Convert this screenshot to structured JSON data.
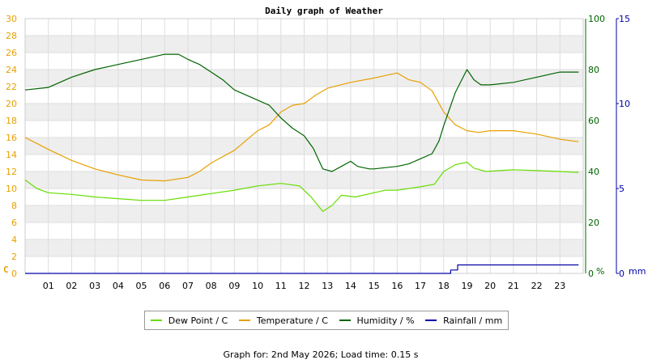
{
  "footer": "Graph for: 2nd May 2026; Load time: 0.15 s",
  "chart_data": {
    "type": "line",
    "title": "Daily graph of Weather",
    "grid": true,
    "legend_position": "bottom",
    "x": {
      "label": "",
      "range": [
        0,
        24
      ],
      "ticks": [
        "01",
        "02",
        "03",
        "04",
        "05",
        "06",
        "07",
        "08",
        "09",
        "10",
        "11",
        "12",
        "13",
        "14",
        "15",
        "16",
        "17",
        "18",
        "19",
        "20",
        "21",
        "22",
        "23"
      ]
    },
    "axes": {
      "left": {
        "unit": "C",
        "range": [
          0,
          30
        ],
        "ticks": [
          0,
          2,
          4,
          6,
          8,
          10,
          12,
          14,
          16,
          18,
          20,
          22,
          24,
          26,
          28,
          30
        ],
        "color": "#e8a000"
      },
      "right1": {
        "unit": "%",
        "range": [
          0,
          100
        ],
        "ticks": [
          0,
          20,
          40,
          60,
          80,
          100
        ],
        "color": "#006400"
      },
      "right2": {
        "unit": "mm",
        "range": [
          0,
          15
        ],
        "ticks": [
          0,
          5,
          10,
          15
        ],
        "color": "#0000aa"
      }
    },
    "series": [
      {
        "name": "Dew Point / C",
        "axis": "left",
        "color": "#66dd00",
        "points": [
          [
            0,
            11.0
          ],
          [
            0.5,
            10.0
          ],
          [
            1,
            9.5
          ],
          [
            2,
            9.3
          ],
          [
            3,
            9.0
          ],
          [
            4,
            8.8
          ],
          [
            5,
            8.6
          ],
          [
            6,
            8.6
          ],
          [
            7,
            9.0
          ],
          [
            8,
            9.4
          ],
          [
            9,
            9.8
          ],
          [
            10,
            10.3
          ],
          [
            11,
            10.6
          ],
          [
            11.8,
            10.3
          ],
          [
            12.3,
            9.0
          ],
          [
            12.8,
            7.3
          ],
          [
            13.2,
            8.0
          ],
          [
            13.6,
            9.2
          ],
          [
            14.2,
            9.0
          ],
          [
            15,
            9.5
          ],
          [
            15.5,
            9.8
          ],
          [
            16,
            9.8
          ],
          [
            17,
            10.2
          ],
          [
            17.6,
            10.5
          ],
          [
            18,
            12.0
          ],
          [
            18.5,
            12.8
          ],
          [
            19,
            13.1
          ],
          [
            19.3,
            12.4
          ],
          [
            19.8,
            12.0
          ],
          [
            21,
            12.2
          ],
          [
            22,
            12.1
          ],
          [
            23,
            12.0
          ],
          [
            23.8,
            11.9
          ]
        ]
      },
      {
        "name": "Temperature / C",
        "axis": "left",
        "color": "#e8a000",
        "points": [
          [
            0,
            16.0
          ],
          [
            0.5,
            15.3
          ],
          [
            1,
            14.6
          ],
          [
            2,
            13.3
          ],
          [
            3,
            12.3
          ],
          [
            4,
            11.6
          ],
          [
            5,
            11.0
          ],
          [
            6,
            10.9
          ],
          [
            7,
            11.3
          ],
          [
            7.5,
            12.0
          ],
          [
            8,
            13.0
          ],
          [
            9,
            14.5
          ],
          [
            10,
            16.8
          ],
          [
            10.5,
            17.5
          ],
          [
            11,
            19.0
          ],
          [
            11.5,
            19.8
          ],
          [
            12,
            20.0
          ],
          [
            12.5,
            21.0
          ],
          [
            13,
            21.8
          ],
          [
            14,
            22.5
          ],
          [
            15,
            23.0
          ],
          [
            15.5,
            23.3
          ],
          [
            16,
            23.6
          ],
          [
            16.5,
            22.8
          ],
          [
            17,
            22.5
          ],
          [
            17.5,
            21.5
          ],
          [
            18,
            19.0
          ],
          [
            18.5,
            17.5
          ],
          [
            19,
            16.8
          ],
          [
            19.5,
            16.6
          ],
          [
            20,
            16.8
          ],
          [
            21,
            16.8
          ],
          [
            22,
            16.4
          ],
          [
            23,
            15.8
          ],
          [
            23.8,
            15.5
          ]
        ]
      },
      {
        "name": "Humidity / %",
        "axis": "right1",
        "color": "#006400",
        "points": [
          [
            0,
            72
          ],
          [
            1,
            73
          ],
          [
            2,
            77
          ],
          [
            3,
            80
          ],
          [
            4,
            82
          ],
          [
            5,
            84
          ],
          [
            6,
            86
          ],
          [
            6.6,
            86
          ],
          [
            7,
            84
          ],
          [
            7.5,
            82
          ],
          [
            8,
            79
          ],
          [
            8.5,
            76
          ],
          [
            9,
            72
          ],
          [
            10,
            68
          ],
          [
            10.5,
            66
          ],
          [
            11,
            61
          ],
          [
            11.5,
            57
          ],
          [
            12,
            54
          ],
          [
            12.4,
            49
          ],
          [
            12.8,
            41
          ],
          [
            13.2,
            40
          ],
          [
            13.6,
            42
          ],
          [
            14,
            44
          ],
          [
            14.3,
            42
          ],
          [
            14.8,
            41
          ],
          [
            15,
            41
          ],
          [
            16,
            42
          ],
          [
            16.5,
            43
          ],
          [
            17,
            45
          ],
          [
            17.5,
            47
          ],
          [
            17.8,
            52
          ],
          [
            18,
            58
          ],
          [
            18.5,
            71
          ],
          [
            19,
            80
          ],
          [
            19.3,
            76
          ],
          [
            19.6,
            74
          ],
          [
            20,
            74
          ],
          [
            21,
            75
          ],
          [
            22,
            77
          ],
          [
            23,
            79
          ],
          [
            23.8,
            79
          ]
        ]
      },
      {
        "name": "Rainfall / mm",
        "axis": "right2",
        "color": "#0000aa",
        "points": [
          [
            0,
            0
          ],
          [
            18.3,
            0
          ],
          [
            18.3,
            0.2
          ],
          [
            18.6,
            0.2
          ],
          [
            18.6,
            0.5
          ],
          [
            23.8,
            0.5
          ]
        ]
      }
    ]
  }
}
